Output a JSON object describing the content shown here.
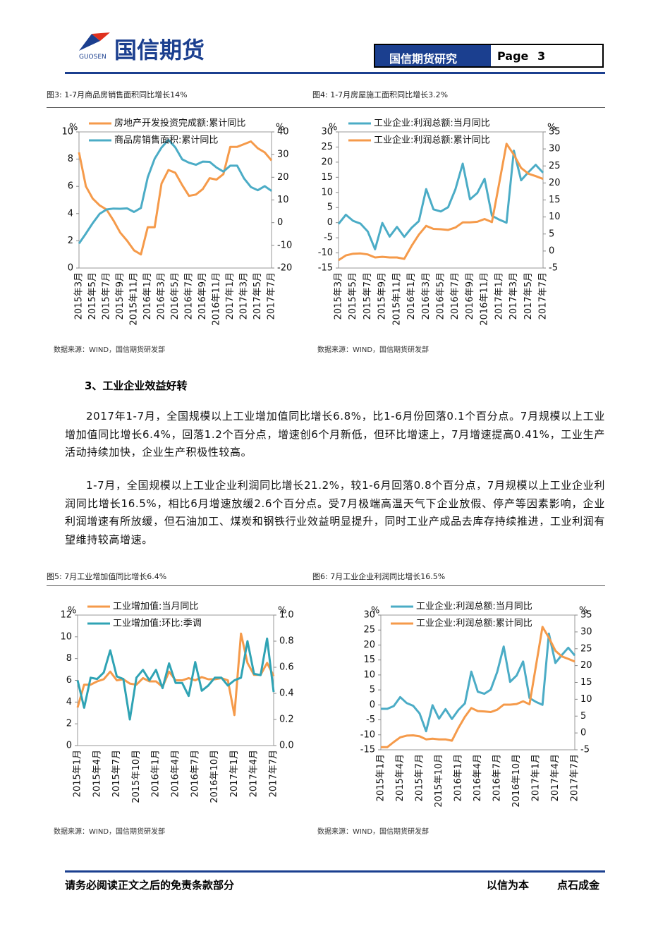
{
  "header": {
    "logo_text": "国信期货",
    "logo_sub": "GUOSEN",
    "section": "国信期货研究",
    "page_label": "Page",
    "page_number": "3"
  },
  "figures": [
    {
      "caption": "图3: 1-7月商品房销售面积同比增长14%",
      "source": "数据来源：WIND，国信期货研发部"
    },
    {
      "caption": "图4: 1-7月房屋施工面积同比增长3.2%",
      "source": "数据来源：WIND，国信期货研发部"
    },
    {
      "caption": "图5: 7月工业增加值同比增长6.4%",
      "source": "数据来源：WIND，国信期货研发部"
    },
    {
      "caption": "图6: 7月工业企业利润同比增长16.5%",
      "source": "数据来源：WIND，国信期货研发部"
    }
  ],
  "section_heading": "3、工业企业效益好转",
  "paragraphs": [
    "2017年1-7月，全国规模以上工业增加值同比增长6.8%，比1-6月份回落0.1个百分点。7月规模以上工业增加值同比增长6.4%，回落1.2个百分点，增速创6个月新低，但环比增速上，7月增速提高0.41%，工业生产活动持续加快，企业生产积极性较高。",
    "1-7月，全国规模以上工业企业利润同比增长21.2%，较1-6月回落0.8个百分点，7月规模以上工业企业利润同比增长16.5%，相比6月增速放缓2.6个百分点。受7月极端高温天气下企业放假、停产等因素影响，企业利润增速有所放缓，但石油加工、煤炭和钢铁行业效益明显提升，同时工业产成品去库存持续推进，工业利润有望维持较高增速。"
  ],
  "footer": {
    "left": "请务必阅读正文之后的免责条款部分",
    "right_1": "以信为本",
    "right_2": "点石成金"
  },
  "chart_data": [
    {
      "type": "line",
      "y_unit": "%",
      "y2_unit": "%",
      "categories": [
        "2015年3月",
        null,
        "2015年5月",
        null,
        "2015年7月",
        null,
        "2015年9月",
        null,
        "2015年11月",
        null,
        "2016年1月",
        null,
        "2016年3月",
        null,
        "2016年5月",
        null,
        "2016年7月",
        null,
        "2016年9月",
        null,
        "2016年11月",
        null,
        "2017年1月",
        null,
        "2017年3月",
        null,
        "2017年5月",
        null,
        "2017年7月"
      ],
      "series": [
        {
          "name": "房地产开发投资完成额:累计同比",
          "color": "#f59a4a",
          "axis": "y",
          "values": [
            8.5,
            6.0,
            5.1,
            4.6,
            4.3,
            3.5,
            2.6,
            2.0,
            1.3,
            1.0,
            3.0,
            3.0,
            6.2,
            7.2,
            7.0,
            6.1,
            5.3,
            5.4,
            5.8,
            6.6,
            6.5,
            6.9,
            8.9,
            8.9,
            9.1,
            9.3,
            8.8,
            8.5,
            7.9
          ]
        },
        {
          "name": "商品房销售面积:累计同比",
          "color": "#4bacc6",
          "axis": "y2",
          "values": [
            -9.2,
            -4.8,
            -0.2,
            3.9,
            5.8,
            6.2,
            6.1,
            6.3,
            4.7,
            6.5,
            20,
            28.2,
            33.1,
            36.5,
            33.2,
            27.9,
            26.4,
            25.5,
            26.9,
            26.8,
            24.3,
            22.5,
            25.1,
            25.1,
            19.5,
            15.7,
            14.3,
            16.1,
            14.0
          ]
        }
      ],
      "ylim": [
        0,
        10
      ],
      "yticks": [
        0,
        2,
        4,
        6,
        8,
        10
      ],
      "y2lim": [
        -20,
        40
      ],
      "y2ticks": [
        -20,
        -10,
        0,
        10,
        20,
        30,
        40
      ]
    },
    {
      "type": "line",
      "y_unit": "%",
      "y2_unit": "%",
      "categories": [
        "2015年3月",
        null,
        "2015年5月",
        null,
        "2015年7月",
        null,
        "2015年9月",
        null,
        "2015年11月",
        null,
        "2016年1月",
        null,
        "2016年3月",
        null,
        "2016年5月",
        null,
        "2016年7月",
        null,
        "2016年9月",
        null,
        "2016年11月",
        null,
        "2017年1月",
        null,
        "2017年3月",
        null,
        "2017年5月",
        null,
        "2017年7月"
      ],
      "series": [
        {
          "name": "工业企业:利润总额:当月同比",
          "color": "#4bacc6",
          "axis": "y",
          "values": [
            -0.4,
            2.6,
            0.6,
            -0.3,
            -2.9,
            -8.8,
            -0.1,
            -4.6,
            -1.4,
            -4.7,
            -1.7,
            0.5,
            11.1,
            4.4,
            3.7,
            5.1,
            11.0,
            19.5,
            7.7,
            9.8,
            14.5,
            2.3,
            1.0,
            0.0,
            23.8,
            14.0,
            16.7,
            19.1,
            16.5
          ]
        },
        {
          "name": "工业企业:利润总额:累计同比",
          "color": "#f59a4a",
          "axis": "y2",
          "values": [
            -2.7,
            -1.3,
            -0.8,
            -0.7,
            -1.0,
            -1.9,
            -1.7,
            -1.9,
            -1.9,
            -2.3,
            1.5,
            4.8,
            7.4,
            6.5,
            6.4,
            6.2,
            6.9,
            8.4,
            8.4,
            8.6,
            9.4,
            8.5,
            20,
            31.5,
            28.3,
            24.4,
            22.7,
            22.0,
            21.2
          ]
        }
      ],
      "ylim": [
        -15,
        30
      ],
      "yticks": [
        -15,
        -10,
        -5,
        0,
        5,
        10,
        15,
        20,
        25,
        30
      ],
      "y2lim": [
        -5,
        35
      ],
      "y2ticks": [
        -5,
        0,
        5,
        10,
        15,
        20,
        25,
        30,
        35
      ]
    },
    {
      "type": "line",
      "y_unit": "%",
      "y2_unit": "%",
      "categories": [
        "2015年1月",
        null,
        null,
        "2015年4月",
        null,
        null,
        "2015年7月",
        null,
        null,
        "2015年10月",
        null,
        null,
        "2016年1月",
        null,
        null,
        "2016年4月",
        null,
        null,
        "2016年7月",
        null,
        null,
        "2016年10月",
        null,
        null,
        "2017年1月",
        null,
        null,
        "2017年4月",
        null,
        null,
        "2017年7月"
      ],
      "series": [
        {
          "name": "工业增加值:当月同比",
          "color": "#f59a4a",
          "axis": "y",
          "values": [
            3.5,
            5.6,
            5.6,
            5.9,
            6.1,
            6.8,
            6.0,
            6.1,
            5.7,
            5.6,
            6.2,
            5.9,
            5.9,
            5.4,
            6.8,
            6.0,
            6.0,
            6.2,
            6.0,
            6.3,
            6.1,
            6.1,
            6.2,
            6.0,
            2.8,
            10.3,
            7.6,
            6.5,
            6.5,
            7.6,
            6.4
          ]
        },
        {
          "name": "工业增加值:环比:季调",
          "color": "#2fa3b4",
          "axis": "y2",
          "values": [
            0.5,
            0.29,
            0.52,
            0.51,
            0.56,
            0.73,
            0.53,
            0.51,
            0.2,
            0.52,
            0.58,
            0.5,
            0.58,
            0.44,
            0.63,
            0.48,
            0.48,
            0.38,
            0.64,
            0.42,
            0.46,
            0.52,
            0.52,
            0.46,
            0.5,
            0.52,
            0.8,
            0.55,
            0.54,
            0.82,
            0.41
          ]
        }
      ],
      "ylim": [
        0,
        12
      ],
      "yticks": [
        0,
        2,
        4,
        6,
        8,
        10,
        12
      ],
      "y2lim": [
        0,
        1
      ],
      "y2ticks": [
        {
          "value": 0,
          "label": "0.0"
        },
        0.2,
        0.4,
        0.6,
        0.8,
        {
          "value": 1,
          "label": "1.0"
        }
      ]
    },
    {
      "type": "line",
      "y_unit": "%",
      "y2_unit": "%",
      "categories": [
        "2015年1月",
        null,
        null,
        "2015年4月",
        null,
        null,
        "2015年7月",
        null,
        null,
        "2015年10月",
        null,
        null,
        "2016年1月",
        null,
        null,
        "2016年4月",
        null,
        null,
        "2016年7月",
        null,
        null,
        "2016年10月",
        null,
        null,
        "2017年1月",
        null,
        null,
        "2017年4月",
        null,
        null,
        "2017年7月"
      ],
      "series": [
        {
          "name": "工业企业:利润总额:当月同比",
          "color": "#4bacc6",
          "axis": "y",
          "values": [
            -1.3,
            -1.3,
            -0.4,
            2.6,
            0.6,
            -0.3,
            -2.9,
            -8.8,
            -0.1,
            -4.6,
            -1.4,
            -4.7,
            -1.7,
            0.5,
            11.1,
            4.4,
            3.7,
            5.1,
            11.0,
            19.5,
            7.7,
            9.8,
            14.5,
            2.3,
            1.0,
            0.0,
            23.8,
            14.0,
            16.7,
            19.1,
            16.5
          ]
        },
        {
          "name": "工业企业:利润总额:累计同比",
          "color": "#f59a4a",
          "axis": "y2",
          "values": [
            -4.2,
            -4.2,
            -2.7,
            -1.3,
            -0.8,
            -0.7,
            -1.0,
            -1.9,
            -1.7,
            -1.9,
            -1.9,
            -2.3,
            1.5,
            4.8,
            7.4,
            6.5,
            6.4,
            6.2,
            6.9,
            8.4,
            8.4,
            8.6,
            9.4,
            8.5,
            20,
            31.5,
            28.3,
            24.4,
            22.7,
            22.0,
            21.2
          ]
        }
      ],
      "ylim": [
        -15,
        30
      ],
      "yticks": [
        -15,
        -10,
        -5,
        0,
        5,
        10,
        15,
        20,
        25,
        30
      ],
      "y2lim": [
        -5,
        35
      ],
      "y2ticks": [
        -5,
        0,
        5,
        10,
        15,
        20,
        25,
        30,
        35
      ]
    }
  ]
}
